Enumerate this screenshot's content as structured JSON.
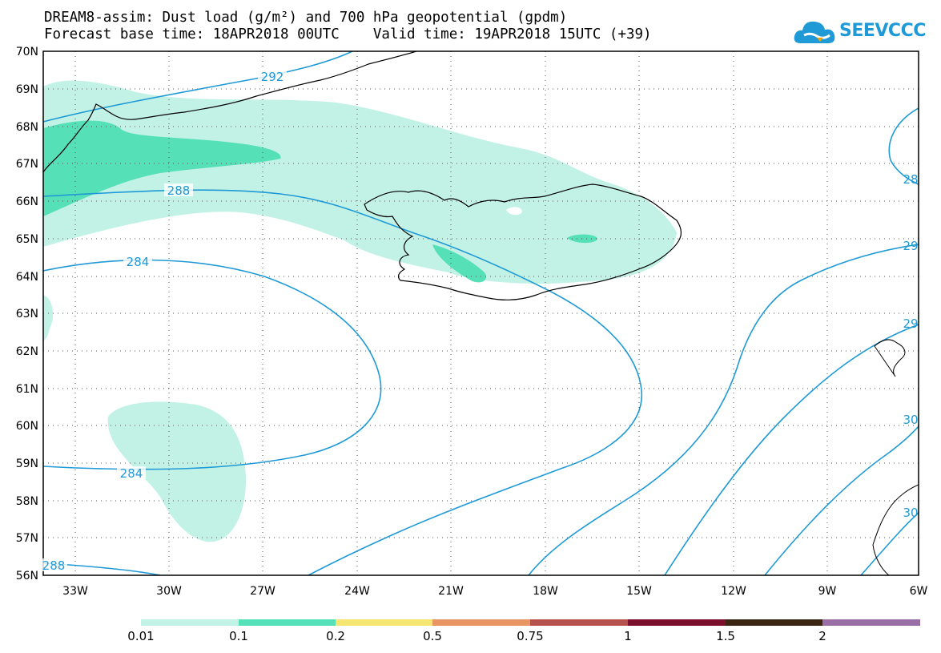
{
  "title": {
    "line1": "DREAM8-assim: Dust load (g/m²) and 700 hPa geopotential (gpdm)",
    "line2": "Forecast base time: 18APR2018 00UTC    Valid time: 19APR2018 15UTC (+39)"
  },
  "logo": {
    "text": "SEEVCCC"
  },
  "map": {
    "lat_labels": [
      "70N",
      "69N",
      "68N",
      "67N",
      "66N",
      "65N",
      "64N",
      "63N",
      "62N",
      "61N",
      "60N",
      "59N",
      "58N",
      "57N",
      "56N"
    ],
    "lon_labels": [
      "33W",
      "30W",
      "27W",
      "24W",
      "21W",
      "18W",
      "15W",
      "12W",
      "9W",
      "6W"
    ],
    "lat_range": [
      56,
      70
    ],
    "lon_range": [
      -34.0,
      -6.0
    ],
    "contour_labels": [
      "292",
      "288",
      "284",
      "284",
      "288",
      "28",
      "29",
      "29",
      "30",
      "30"
    ],
    "colors": {
      "contour": "#1f9ad6",
      "dust_low": "#c2f2e6",
      "dust_mid": "#55e0b8"
    }
  },
  "legend": {
    "labels": [
      "0.01",
      "0.1",
      "0.2",
      "0.5",
      "0.75",
      "1",
      "1.5",
      "2"
    ],
    "colors": [
      "#c2f2e6",
      "#55e0b8",
      "#f5e571",
      "#e99463",
      "#b7524f",
      "#7b0f2c",
      "#3a2613",
      "#9a6fa6"
    ]
  }
}
